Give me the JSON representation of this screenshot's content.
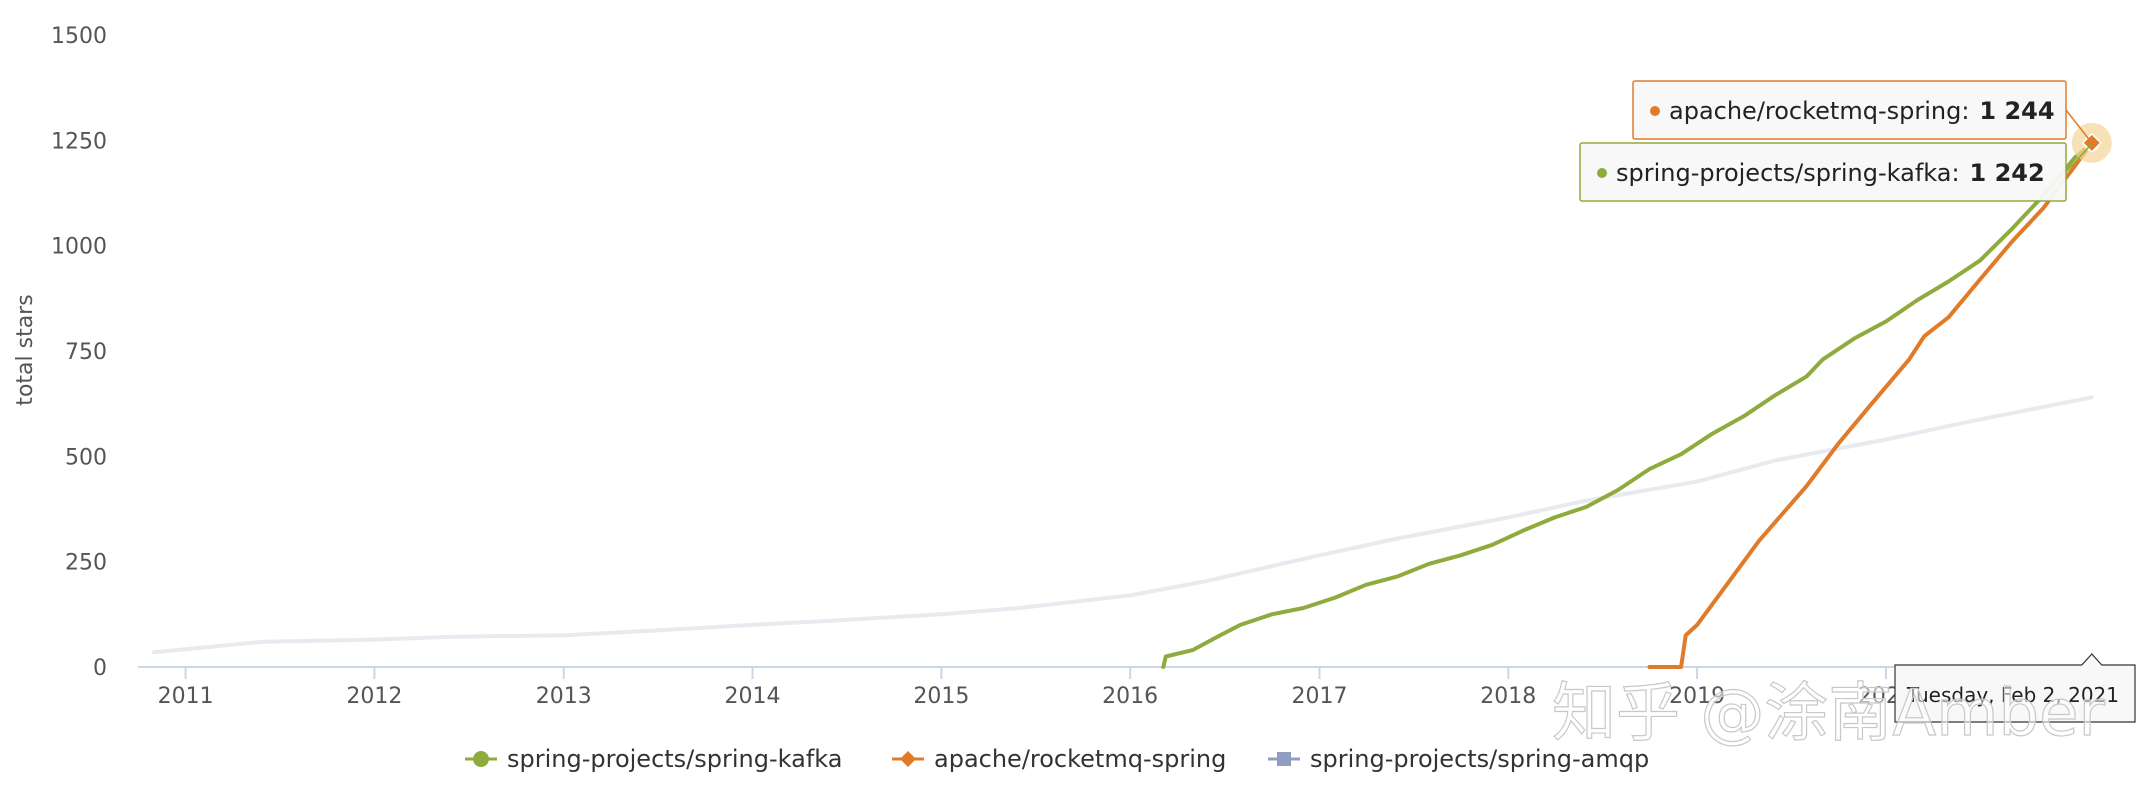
{
  "chart_data": {
    "type": "line",
    "title": "",
    "xlabel": "",
    "ylabel": "total stars",
    "ylim": [
      0,
      1500
    ],
    "yticks": [
      0,
      250,
      500,
      750,
      1000,
      1250,
      1500
    ],
    "xlim": [
      "2010-10-01",
      "2021-02-14"
    ],
    "xticks": [
      "2011",
      "2012",
      "2013",
      "2014",
      "2015",
      "2016",
      "2017",
      "2018",
      "2019",
      "2020",
      "2021"
    ],
    "grid": false,
    "legend_position": "bottom-center",
    "series": [
      {
        "name": "spring-projects/spring-kafka",
        "color": "#8faa3d",
        "marker": "circle",
        "points": [
          [
            "2016-03-05",
            0
          ],
          [
            "2016-03-10",
            25
          ],
          [
            "2016-05-01",
            40
          ],
          [
            "2016-06-15",
            70
          ],
          [
            "2016-08-01",
            100
          ],
          [
            "2016-10-01",
            125
          ],
          [
            "2016-12-01",
            140
          ],
          [
            "2017-02-01",
            165
          ],
          [
            "2017-04-01",
            195
          ],
          [
            "2017-06-01",
            215
          ],
          [
            "2017-08-01",
            245
          ],
          [
            "2017-10-01",
            265
          ],
          [
            "2017-12-01",
            290
          ],
          [
            "2018-02-01",
            325
          ],
          [
            "2018-04-01",
            355
          ],
          [
            "2018-06-01",
            380
          ],
          [
            "2018-08-01",
            420
          ],
          [
            "2018-10-01",
            470
          ],
          [
            "2018-12-01",
            505
          ],
          [
            "2019-02-01",
            555
          ],
          [
            "2019-04-01",
            595
          ],
          [
            "2019-06-01",
            645
          ],
          [
            "2019-08-01",
            690
          ],
          [
            "2019-09-01",
            730
          ],
          [
            "2019-11-01",
            780
          ],
          [
            "2020-01-01",
            820
          ],
          [
            "2020-03-01",
            870
          ],
          [
            "2020-05-01",
            915
          ],
          [
            "2020-07-01",
            965
          ],
          [
            "2020-09-01",
            1040
          ],
          [
            "2020-11-01",
            1120
          ],
          [
            "2021-01-01",
            1210
          ],
          [
            "2021-02-02",
            1242
          ]
        ]
      },
      {
        "name": "apache/rocketmq-spring",
        "color": "#e07b2a",
        "marker": "diamond",
        "points": [
          [
            "2018-10-01",
            0
          ],
          [
            "2018-12-01",
            0
          ],
          [
            "2018-12-10",
            75
          ],
          [
            "2019-01-01",
            100
          ],
          [
            "2019-02-15",
            175
          ],
          [
            "2019-05-01",
            300
          ],
          [
            "2019-08-01",
            430
          ],
          [
            "2019-10-01",
            530
          ],
          [
            "2019-12-01",
            620
          ],
          [
            "2020-02-15",
            730
          ],
          [
            "2020-03-15",
            785
          ],
          [
            "2020-05-01",
            830
          ],
          [
            "2020-07-01",
            920
          ],
          [
            "2020-09-01",
            1010
          ],
          [
            "2020-11-01",
            1090
          ],
          [
            "2021-01-01",
            1190
          ],
          [
            "2021-02-02",
            1244
          ]
        ]
      },
      {
        "name": "spring-projects/spring-amqp",
        "color": "#8d9ec0",
        "marker": "square",
        "points": [
          [
            "2010-11-01",
            35
          ],
          [
            "2011-06-01",
            60
          ],
          [
            "2012-01-01",
            65
          ],
          [
            "2012-06-01",
            72
          ],
          [
            "2013-01-01",
            75
          ],
          [
            "2013-06-01",
            85
          ],
          [
            "2014-01-01",
            100
          ],
          [
            "2014-06-01",
            110
          ],
          [
            "2015-01-01",
            125
          ],
          [
            "2015-06-01",
            140
          ],
          [
            "2016-01-01",
            170
          ],
          [
            "2016-06-01",
            205
          ],
          [
            "2017-01-01",
            265
          ],
          [
            "2017-06-01",
            305
          ],
          [
            "2018-01-01",
            355
          ],
          [
            "2018-06-01",
            395
          ],
          [
            "2019-01-01",
            440
          ],
          [
            "2019-06-01",
            490
          ],
          [
            "2020-01-01",
            540
          ],
          [
            "2020-06-01",
            580
          ],
          [
            "2021-02-02",
            640
          ]
        ]
      }
    ],
    "highlight_color": "#f3d59a"
  },
  "tooltips": [
    {
      "series": "apache/rocketmq-spring",
      "label": "apache/rocketmq-spring:",
      "value": "1 244",
      "color": "#e07b2a"
    },
    {
      "series": "spring-projects/spring-kafka",
      "label": "spring-projects/spring-kafka:",
      "value": "1 242",
      "color": "#8faa3d"
    }
  ],
  "x_tooltip": {
    "label": "Tuesday, Feb 2, 2021"
  },
  "watermark": {
    "text": "知乎 @涂南Amber"
  }
}
